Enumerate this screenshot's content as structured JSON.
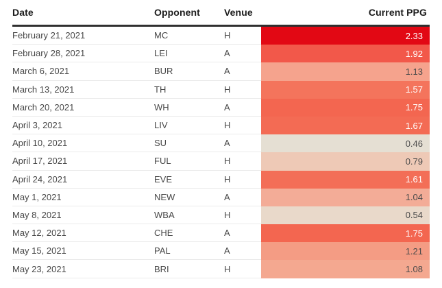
{
  "table": {
    "columns": {
      "date": "Date",
      "opponent": "Opponent",
      "venue": "Venue",
      "ppg": "Current PPG"
    },
    "rows": [
      {
        "date": "February 21, 2021",
        "opponent": "MC",
        "venue": "H",
        "ppg": "2.33",
        "cell_color": "#e20814",
        "text_color": "#ffffff"
      },
      {
        "date": "February 28, 2021",
        "opponent": "LEI",
        "venue": "A",
        "ppg": "1.92",
        "cell_color": "#f2584a",
        "text_color": "#ffffff"
      },
      {
        "date": "March 6, 2021",
        "opponent": "BUR",
        "venue": "A",
        "ppg": "1.13",
        "cell_color": "#f5a38d",
        "text_color": "#4a4a4a"
      },
      {
        "date": "March 13, 2021",
        "opponent": "TH",
        "venue": "H",
        "ppg": "1.57",
        "cell_color": "#f4745c",
        "text_color": "#ffffff"
      },
      {
        "date": "March 20, 2021",
        "opponent": "WH",
        "venue": "A",
        "ppg": "1.75",
        "cell_color": "#f36650",
        "text_color": "#ffffff"
      },
      {
        "date": "April 3, 2021",
        "opponent": "LIV",
        "venue": "H",
        "ppg": "1.67",
        "cell_color": "#f36b54",
        "text_color": "#ffffff"
      },
      {
        "date": "April 10, 2021",
        "opponent": "SU",
        "venue": "A",
        "ppg": "0.46",
        "cell_color": "#e5dfd3",
        "text_color": "#4a4a4a"
      },
      {
        "date": "April 17, 2021",
        "opponent": "FUL",
        "venue": "H",
        "ppg": "0.79",
        "cell_color": "#eec9b6",
        "text_color": "#4a4a4a"
      },
      {
        "date": "April 24, 2021",
        "opponent": "EVE",
        "venue": "H",
        "ppg": "1.61",
        "cell_color": "#f36e57",
        "text_color": "#ffffff"
      },
      {
        "date": "May 1, 2021",
        "opponent": "NEW",
        "venue": "A",
        "ppg": "1.04",
        "cell_color": "#f3ac97",
        "text_color": "#4a4a4a"
      },
      {
        "date": "May 8, 2021",
        "opponent": "WBA",
        "venue": "H",
        "ppg": "0.54",
        "cell_color": "#e9d9ca",
        "text_color": "#4a4a4a"
      },
      {
        "date": "May 12, 2021",
        "opponent": "CHE",
        "venue": "A",
        "ppg": "1.75",
        "cell_color": "#f36650",
        "text_color": "#ffffff"
      },
      {
        "date": "May 15, 2021",
        "opponent": "PAL",
        "venue": "A",
        "ppg": "1.21",
        "cell_color": "#f49c84",
        "text_color": "#4a4a4a"
      },
      {
        "date": "May 23, 2021",
        "opponent": "BRI",
        "venue": "H",
        "ppg": "1.08",
        "cell_color": "#f4a890",
        "text_color": "#4a4a4a"
      }
    ]
  },
  "style": {
    "header_text_color": "#1b1b1b",
    "body_text_color": "#474747",
    "header_rule_color": "#2f2f2f",
    "row_divider_color": "#eaeaea",
    "heat_low_color": "#e5dfd3",
    "heat_high_color": "#e20814"
  },
  "chart_data": {
    "type": "table",
    "title": "",
    "columns": [
      "Date",
      "Opponent",
      "Venue",
      "Current PPG"
    ],
    "rows": [
      [
        "February 21, 2021",
        "MC",
        "H",
        2.33
      ],
      [
        "February 28, 2021",
        "LEI",
        "A",
        1.92
      ],
      [
        "March 6, 2021",
        "BUR",
        "A",
        1.13
      ],
      [
        "March 13, 2021",
        "TH",
        "H",
        1.57
      ],
      [
        "March 20, 2021",
        "WH",
        "A",
        1.75
      ],
      [
        "April 3, 2021",
        "LIV",
        "H",
        1.67
      ],
      [
        "April 10, 2021",
        "SU",
        "A",
        0.46
      ],
      [
        "April 17, 2021",
        "FUL",
        "H",
        0.79
      ],
      [
        "April 24, 2021",
        "EVE",
        "H",
        1.61
      ],
      [
        "May 1, 2021",
        "NEW",
        "A",
        1.04
      ],
      [
        "May 8, 2021",
        "WBA",
        "H",
        0.54
      ],
      [
        "May 12, 2021",
        "CHE",
        "A",
        1.75
      ],
      [
        "May 15, 2021",
        "PAL",
        "A",
        1.21
      ],
      [
        "May 23, 2021",
        "BRI",
        "H",
        1.08
      ]
    ],
    "heatmap_column": "Current PPG",
    "value_range": [
      0.46,
      2.33
    ],
    "color_scale": {
      "low": "#e5dfd3",
      "high": "#e20814"
    }
  }
}
